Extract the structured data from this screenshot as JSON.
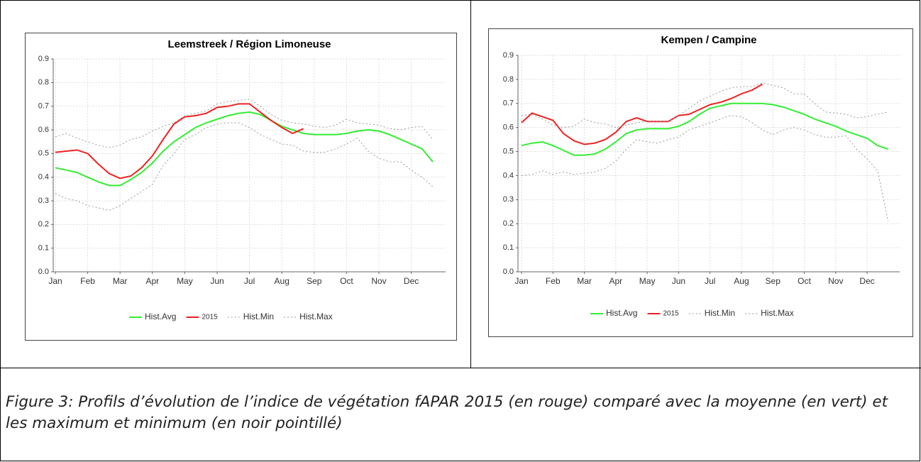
{
  "chart_data": [
    {
      "type": "line",
      "title": "Leemstreek / Région Limoneuse",
      "categories": [
        "Jan",
        null,
        null,
        "Feb",
        null,
        null,
        "Mar",
        null,
        null,
        "Apr",
        null,
        null,
        "May",
        null,
        null,
        "Jun",
        null,
        null,
        "Jul",
        null,
        null,
        "Aug",
        null,
        null,
        "Sep",
        null,
        null,
        "Oct",
        null,
        null,
        "Nov",
        null,
        null,
        "Dec",
        null,
        null
      ],
      "ylim": [
        0,
        0.9
      ],
      "yticks": [
        {
          "value": 0,
          "label": "0.0"
        },
        0.1,
        0.2,
        0.3,
        0.4,
        0.5,
        0.6,
        0.7,
        0.8,
        0.9
      ],
      "grid": true,
      "series": [
        {
          "name": "Hist.Avg",
          "color": "#33ee33",
          "values": [
            0.44,
            0.43,
            0.42,
            0.4,
            0.38,
            0.365,
            0.365,
            0.39,
            0.42,
            0.46,
            0.51,
            0.55,
            0.58,
            0.61,
            0.63,
            0.645,
            0.66,
            0.67,
            0.675,
            0.665,
            0.64,
            0.615,
            0.6,
            0.585,
            0.58,
            0.58,
            0.58,
            0.585,
            0.595,
            0.6,
            0.595,
            0.58,
            0.56,
            0.54,
            0.52,
            0.465
          ]
        },
        {
          "name": "2015",
          "color": "#ee2222",
          "values": [
            0.505,
            0.51,
            0.515,
            0.5,
            0.455,
            0.415,
            0.395,
            0.405,
            0.44,
            0.49,
            0.56,
            0.625,
            0.655,
            0.66,
            0.67,
            0.695,
            0.7,
            0.71,
            0.71,
            0.675,
            0.64,
            0.61,
            0.585,
            0.605,
            null,
            null,
            null,
            null,
            null,
            null,
            null,
            null,
            null,
            null,
            null,
            null
          ]
        },
        {
          "name": "Hist.Min",
          "color": "#999999",
          "values": [
            0.33,
            0.31,
            0.3,
            0.28,
            0.27,
            0.26,
            0.28,
            0.31,
            0.34,
            0.37,
            0.45,
            0.5,
            0.56,
            0.58,
            0.61,
            0.625,
            0.63,
            0.63,
            0.61,
            0.58,
            0.56,
            0.54,
            0.535,
            0.51,
            0.505,
            0.505,
            0.52,
            0.54,
            0.565,
            0.51,
            0.48,
            0.465,
            0.465,
            0.43,
            0.4,
            0.36
          ]
        },
        {
          "name": "Hist.Max",
          "color": "#999999",
          "values": [
            0.57,
            0.585,
            0.565,
            0.55,
            0.535,
            0.525,
            0.535,
            0.56,
            0.57,
            0.595,
            0.615,
            0.63,
            0.66,
            0.67,
            0.68,
            0.71,
            0.72,
            0.725,
            0.73,
            0.7,
            0.665,
            0.64,
            0.63,
            0.625,
            0.615,
            0.61,
            0.62,
            0.645,
            0.63,
            0.625,
            0.62,
            0.605,
            0.6,
            0.61,
            0.615,
            0.56
          ]
        }
      ]
    },
    {
      "type": "line",
      "title": "Kempen / Campine",
      "categories": [
        "Jan",
        null,
        null,
        "Feb",
        null,
        null,
        "Mar",
        null,
        null,
        "Apr",
        null,
        null,
        "May",
        null,
        null,
        "Jun",
        null,
        null,
        "Jul",
        null,
        null,
        "Aug",
        null,
        null,
        "Sep",
        null,
        null,
        "Oct",
        null,
        null,
        "Nov",
        null,
        null,
        "Dec",
        null,
        null
      ],
      "ylim": [
        0,
        0.9
      ],
      "yticks": [
        {
          "value": 0,
          "label": "0.0"
        },
        0.1,
        0.2,
        0.3,
        0.4,
        0.5,
        0.6,
        0.7,
        0.8,
        0.9
      ],
      "grid": true,
      "series": [
        {
          "name": "Hist.Avg",
          "color": "#33ee33",
          "values": [
            0.525,
            0.535,
            0.54,
            0.525,
            0.505,
            0.485,
            0.485,
            0.49,
            0.51,
            0.54,
            0.575,
            0.59,
            0.595,
            0.595,
            0.595,
            0.605,
            0.625,
            0.655,
            0.68,
            0.69,
            0.7,
            0.7,
            0.7,
            0.7,
            0.695,
            0.685,
            0.67,
            0.655,
            0.635,
            0.62,
            0.605,
            0.585,
            0.57,
            0.555,
            0.525,
            0.51
          ]
        },
        {
          "name": "2015",
          "color": "#ee2222",
          "values": [
            0.62,
            0.66,
            0.645,
            0.63,
            0.575,
            0.545,
            0.53,
            0.535,
            0.55,
            0.58,
            0.625,
            0.64,
            0.625,
            0.625,
            0.625,
            0.65,
            0.655,
            0.675,
            0.695,
            0.705,
            0.72,
            0.74,
            0.755,
            0.78,
            null,
            null,
            null,
            null,
            null,
            null,
            null,
            null,
            null,
            null,
            null,
            null
          ]
        },
        {
          "name": "Hist.Min",
          "color": "#999999",
          "values": [
            0.4,
            0.405,
            0.42,
            0.405,
            0.415,
            0.405,
            0.41,
            0.415,
            0.43,
            0.46,
            0.51,
            0.55,
            0.54,
            0.535,
            0.55,
            0.56,
            0.59,
            0.605,
            0.62,
            0.635,
            0.65,
            0.645,
            0.62,
            0.59,
            0.57,
            0.59,
            0.6,
            0.59,
            0.57,
            0.56,
            0.56,
            0.565,
            0.51,
            0.47,
            0.42,
            0.21
          ]
        },
        {
          "name": "Hist.Max",
          "color": "#999999",
          "values": [
            0.65,
            0.655,
            0.635,
            0.61,
            0.6,
            0.605,
            0.635,
            0.62,
            0.615,
            0.6,
            0.61,
            0.62,
            0.625,
            0.625,
            0.625,
            0.65,
            0.68,
            0.71,
            0.73,
            0.75,
            0.765,
            0.77,
            0.77,
            0.785,
            0.775,
            0.765,
            0.74,
            0.74,
            0.7,
            0.665,
            0.66,
            0.655,
            0.64,
            0.645,
            0.655,
            0.665
          ]
        }
      ]
    }
  ],
  "caption": "Figure 3: Profils d’évolution de l’indice de végétation fAPAR 2015 (en rouge) comparé avec la moyenne (en vert) et les maximum et minimum (en noir pointillé)"
}
